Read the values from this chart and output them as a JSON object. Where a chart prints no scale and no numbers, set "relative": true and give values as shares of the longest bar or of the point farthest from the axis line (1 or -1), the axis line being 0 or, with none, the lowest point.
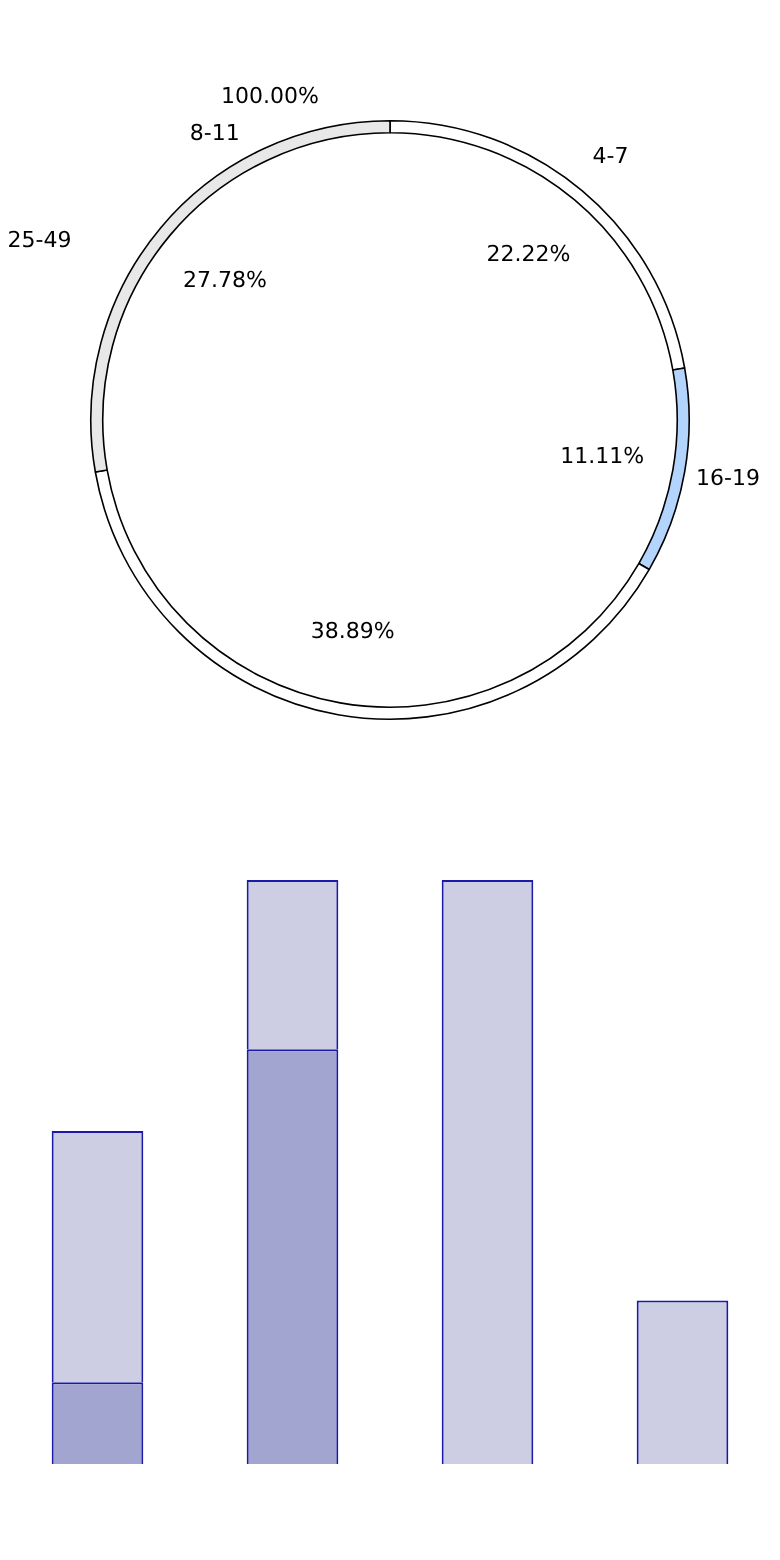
{
  "chart_data": [
    {
      "type": "donut",
      "categories": [
        "4-7",
        "16-19",
        null,
        null,
        "8-11",
        "25-49"
      ],
      "values": [
        22.22,
        11.11,
        38.89,
        27.78,
        0,
        0
      ],
      "value_labels": [
        "22.22%",
        "11.11%",
        "38.89%",
        "27.78%",
        null,
        null
      ],
      "colors": [
        "#ffffff",
        "#b3d4fc",
        "#ffffff",
        "#e8e8e8",
        "#dce8fa",
        "#ffffff"
      ],
      "annotations": [
        "100.00%"
      ],
      "legend": false
    },
    {
      "type": "bar",
      "relative": true,
      "stacked": true,
      "categories": [
        null,
        null,
        null,
        null
      ],
      "legend": false,
      "series": [
        {
          "color": "#a3a5d1",
          "values": [
            0.14,
            0.71,
            0,
            0
          ]
        },
        {
          "color": "#cdcde4",
          "values": [
            0.43,
            0.29,
            1,
            0.28
          ]
        }
      ]
    }
  ]
}
